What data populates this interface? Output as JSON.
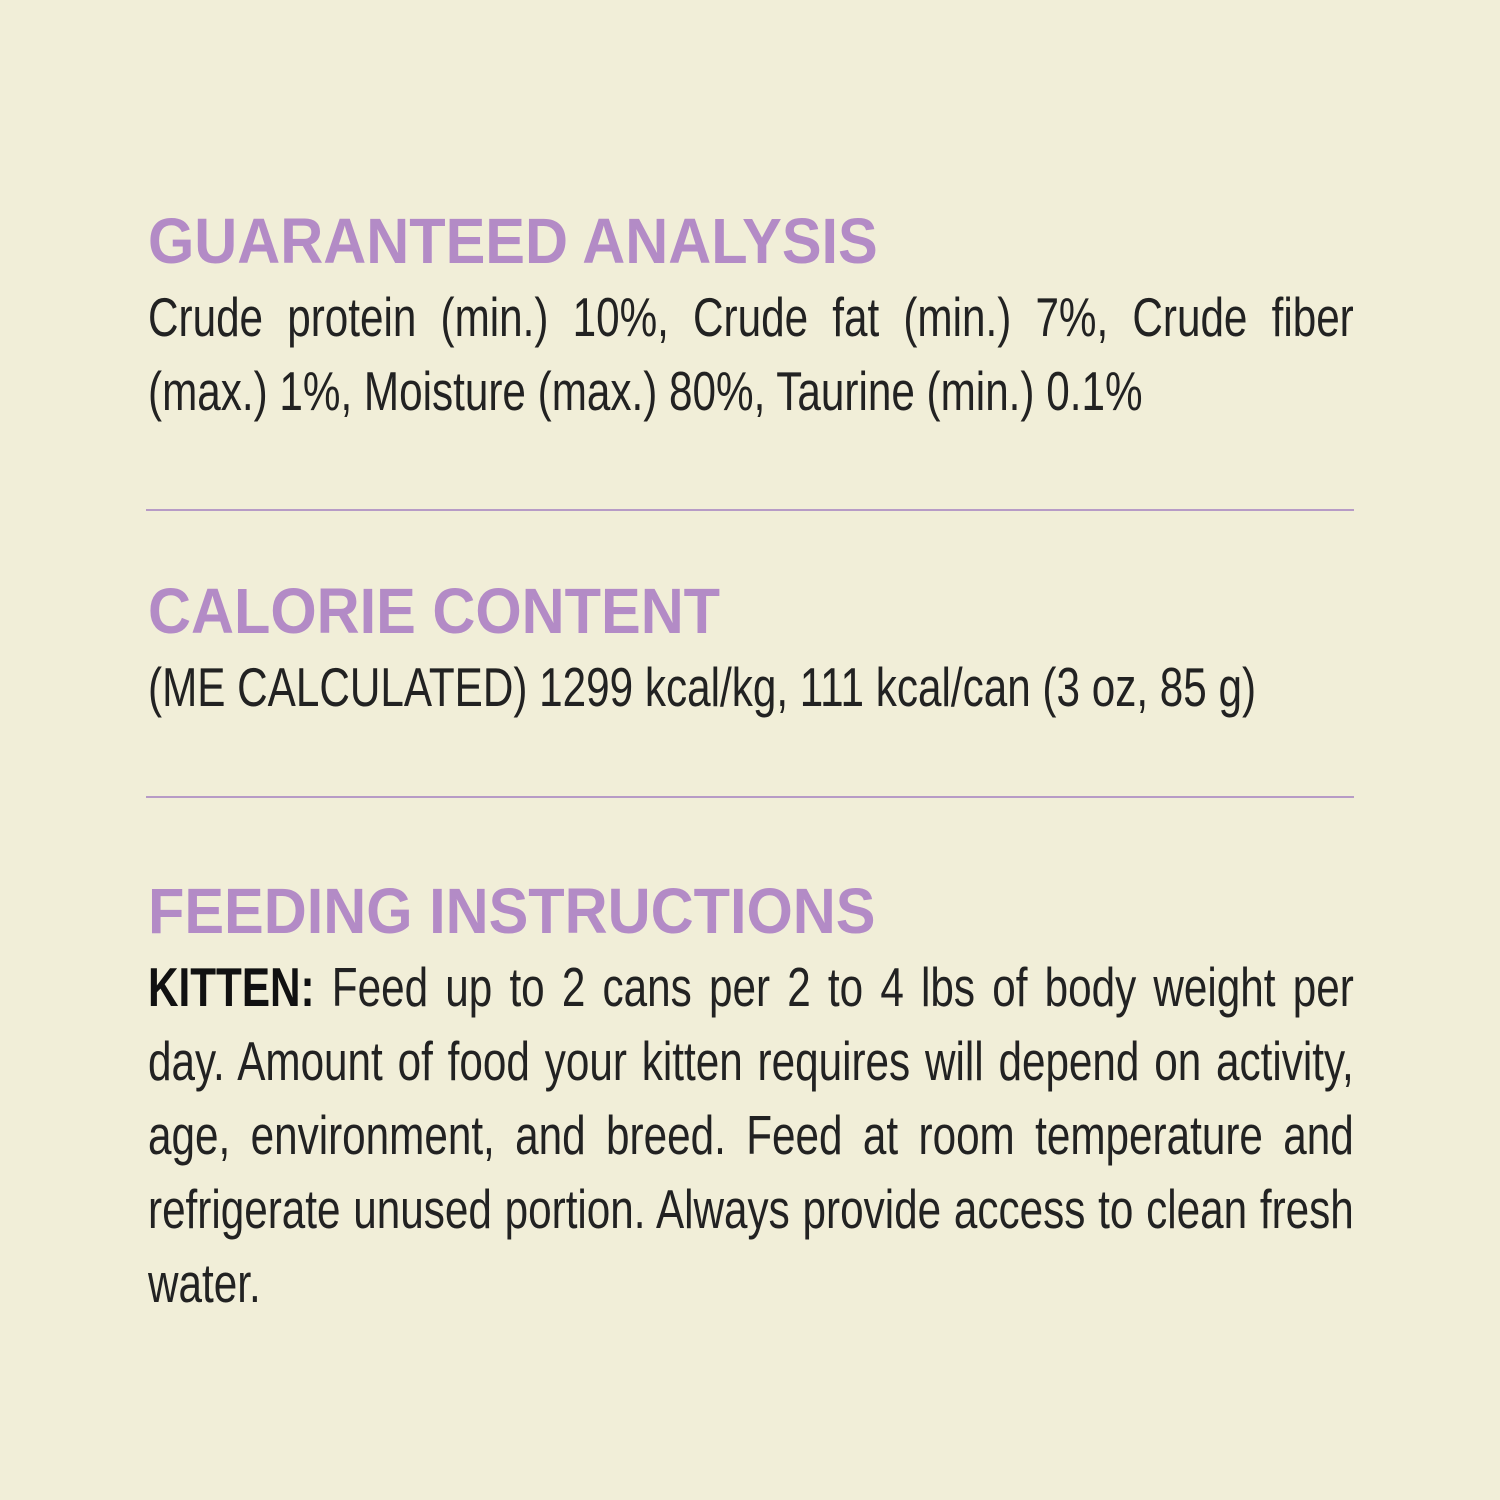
{
  "sections": [
    {
      "heading": "GUARANTEED ANALYSIS",
      "text": "Crude protein (min.) 10%, Crude fat (min.) 7%, Crude fiber (max.) 1%, Moisture (max.) 80%, Taurine (min.) 0.1%"
    },
    {
      "heading": "CALORIE CONTENT",
      "text": "(ME CALCULATED) 1299 kcal/kg, 111 kcal/can (3 oz, 85 g)"
    },
    {
      "heading": "FEEDING INSTRUCTIONS",
      "label": "KITTEN:",
      "text": "Feed up to 2 cans per 2 to 4 lbs of body weight per day. Amount of food your kitten requires will depend on activity, age, environment, and breed. Feed at room temperature and refrigerate unused portion. Always provide access to clean fresh water."
    }
  ],
  "colors": {
    "background": "#f1eed8",
    "heading": "#b38bc6",
    "divider": "#b79bc6",
    "text": "#222222"
  }
}
